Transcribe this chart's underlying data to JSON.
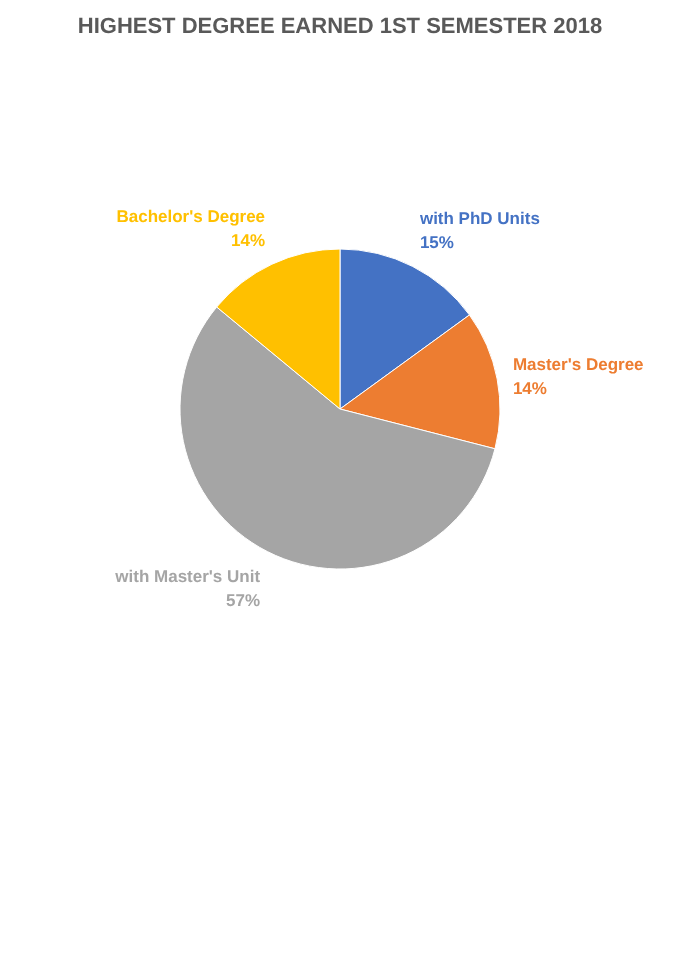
{
  "chart_data": {
    "type": "pie",
    "title": "HIGHEST DEGREE EARNED 1ST SEMESTER 2018",
    "categories": [
      "with PhD Units",
      "Master's Degree",
      "with Master's Unit",
      "Bachelor's Degree"
    ],
    "values": [
      15,
      14,
      57,
      14
    ],
    "value_labels": [
      "15%",
      "14%",
      "57%",
      "14%"
    ],
    "colors": [
      "#4472c4",
      "#ed7d31",
      "#a5a5a5",
      "#ffc000"
    ]
  }
}
